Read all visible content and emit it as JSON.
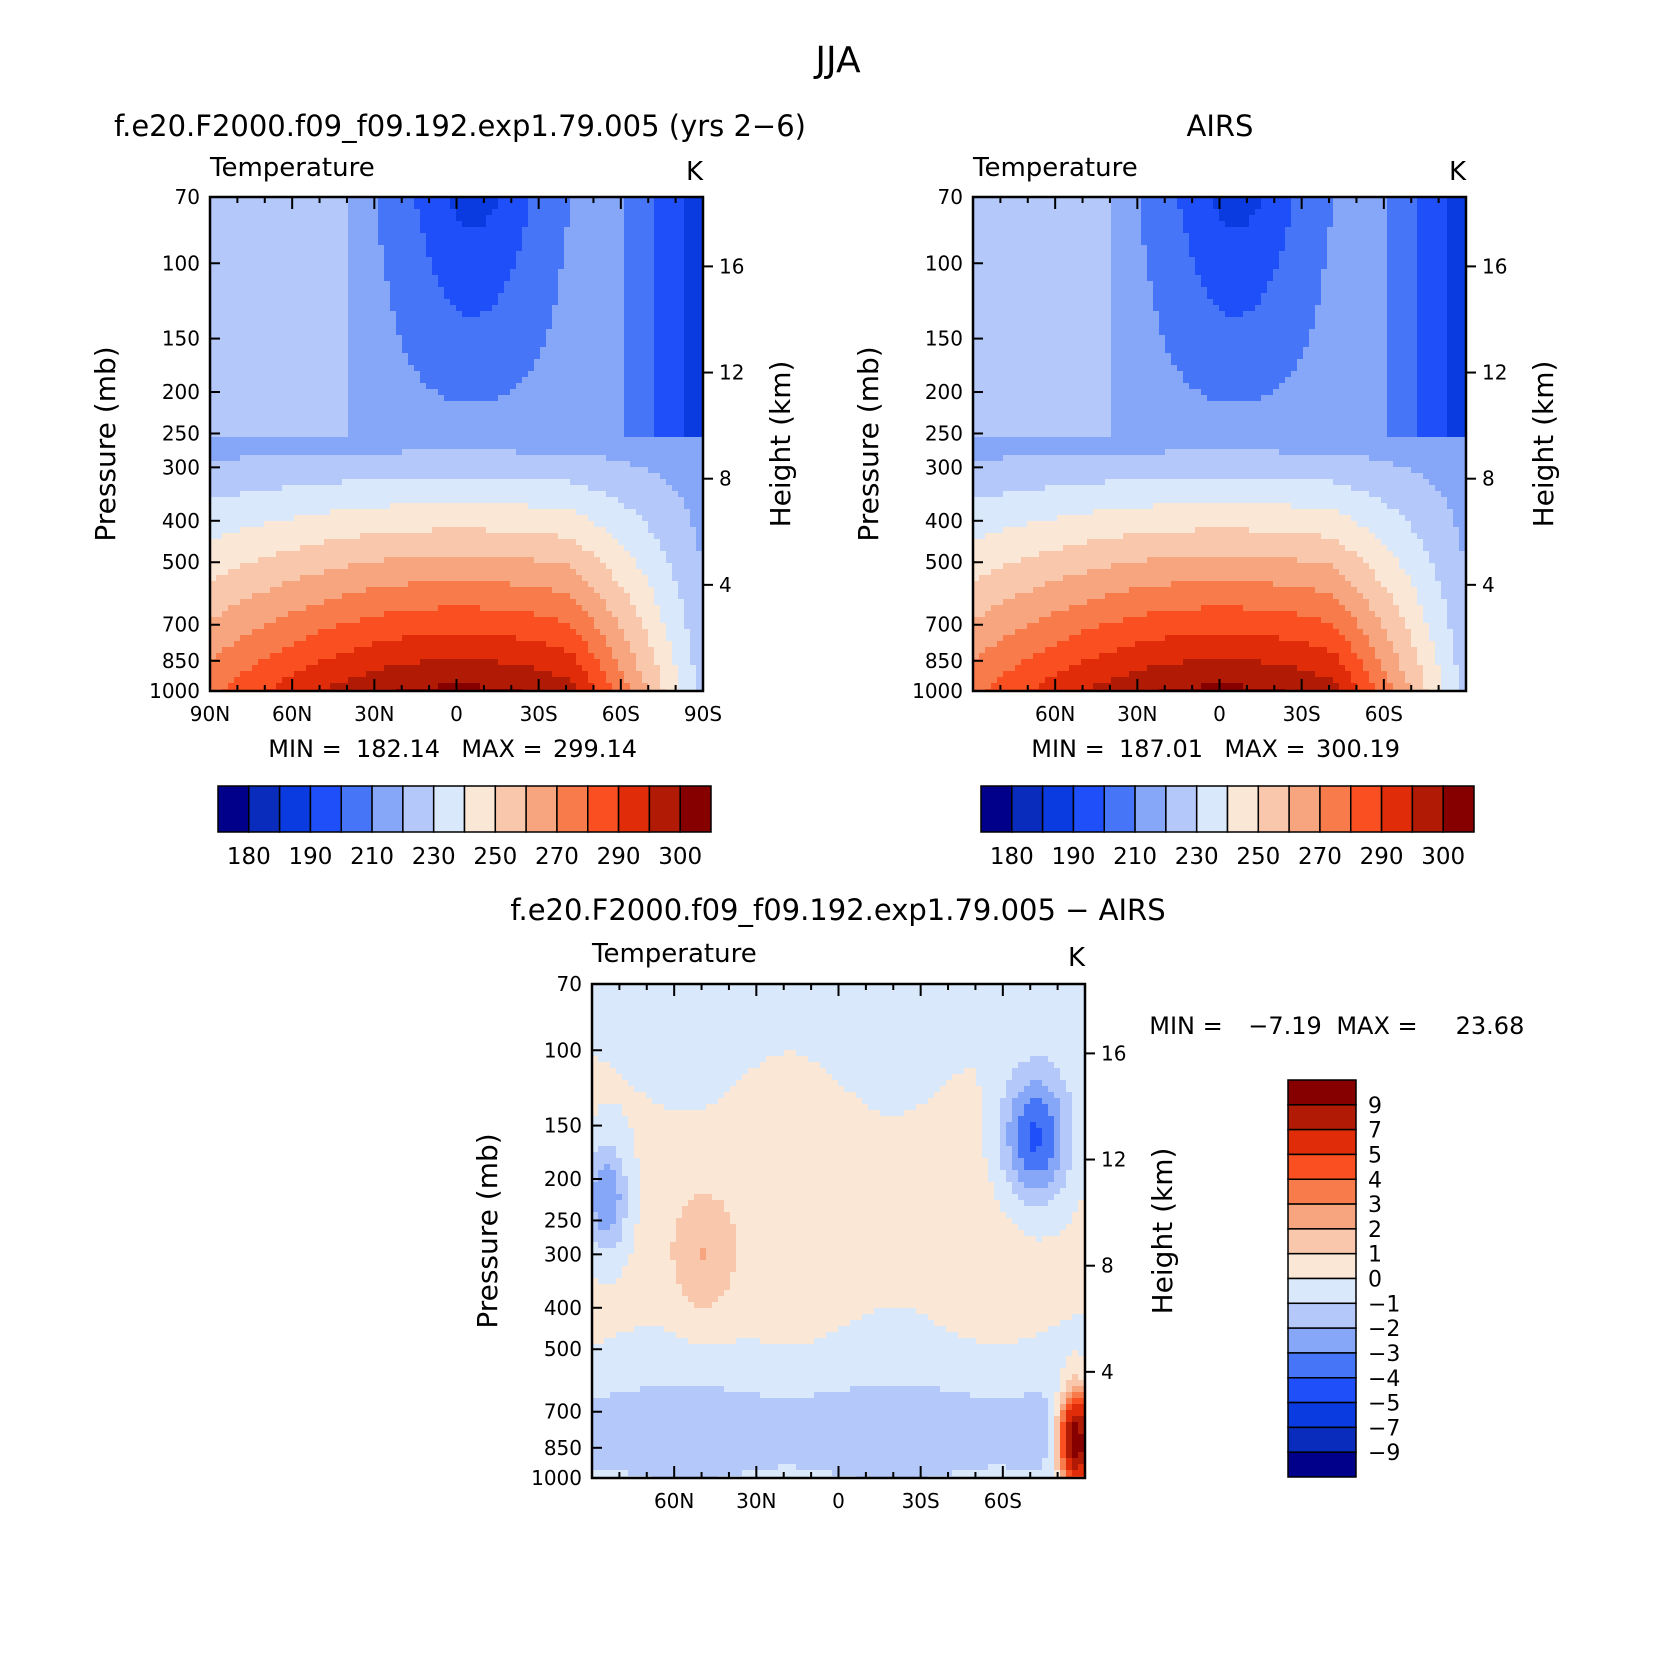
{
  "figure": {
    "title": "JJA"
  },
  "chart_data": [
    {
      "type": "heatmap",
      "title": "f.e20.F2000.f09_f09.192.exp1.79.005 (yrs 2−6)",
      "subtitle": "Temperature",
      "units": "K",
      "xlabel": "",
      "ylabel": "Pressure (mb)",
      "ylabel_right": "Height (km)",
      "x_ticks": [
        "90N",
        "60N",
        "30N",
        "0",
        "30S",
        "60S",
        "90S"
      ],
      "x_tick_values": [
        90,
        60,
        30,
        0,
        -30,
        -60,
        -90
      ],
      "xlim": [
        90,
        -90
      ],
      "y_ticks": [
        70,
        100,
        150,
        200,
        250,
        300,
        400,
        500,
        700,
        850,
        1000
      ],
      "ylim": [
        1000,
        70
      ],
      "y_scale": "log",
      "right_ticks": [
        4,
        8,
        12,
        16
      ],
      "min_label": "MIN =",
      "min": "182.14",
      "max_label": "MAX =",
      "max": "299.14",
      "colorbar": {
        "orientation": "horizontal",
        "colors": [
          "#00008b",
          "#0a2cbc",
          "#0a3be0",
          "#1f4ff8",
          "#4676f7",
          "#86a7f8",
          "#b4c9fa",
          "#d9e8fb",
          "#fbe7d6",
          "#f9c7ab",
          "#f7a57e",
          "#f87b4c",
          "#fa4f21",
          "#e12c09",
          "#b11a05",
          "#870000"
        ],
        "labels": [
          "180",
          "190",
          "210",
          "230",
          "250",
          "270",
          "290",
          "300"
        ]
      }
    },
    {
      "type": "heatmap",
      "title": "AIRS",
      "subtitle": "Temperature",
      "units": "K",
      "xlabel": "",
      "ylabel": "Pressure (mb)",
      "ylabel_right": "Height (km)",
      "x_ticks": [
        "60N",
        "30N",
        "0",
        "30S",
        "60S"
      ],
      "x_tick_values": [
        60,
        30,
        0,
        -30,
        -60
      ],
      "xlim": [
        90,
        -90
      ],
      "y_ticks": [
        70,
        100,
        150,
        200,
        250,
        300,
        400,
        500,
        700,
        850,
        1000
      ],
      "ylim": [
        1000,
        70
      ],
      "y_scale": "log",
      "right_ticks": [
        4,
        8,
        12,
        16
      ],
      "min_label": "MIN =",
      "min": "187.01",
      "max_label": "MAX =",
      "max": "300.19",
      "colorbar": {
        "orientation": "horizontal",
        "colors": [
          "#00008b",
          "#0a2cbc",
          "#0a3be0",
          "#1f4ff8",
          "#4676f7",
          "#86a7f8",
          "#b4c9fa",
          "#d9e8fb",
          "#fbe7d6",
          "#f9c7ab",
          "#f7a57e",
          "#f87b4c",
          "#fa4f21",
          "#e12c09",
          "#b11a05",
          "#870000"
        ],
        "labels": [
          "180",
          "190",
          "210",
          "230",
          "250",
          "270",
          "290",
          "300"
        ]
      }
    },
    {
      "type": "heatmap",
      "title": "f.e20.F2000.f09_f09.192.exp1.79.005 − AIRS",
      "subtitle": "Temperature",
      "units": "K",
      "xlabel": "",
      "ylabel": "Pressure (mb)",
      "ylabel_right": "Height (km)",
      "x_ticks": [
        "60N",
        "30N",
        "0",
        "30S",
        "60S"
      ],
      "x_tick_values": [
        60,
        30,
        0,
        -30,
        -60
      ],
      "xlim": [
        90,
        -90
      ],
      "y_ticks": [
        70,
        100,
        150,
        200,
        250,
        300,
        400,
        500,
        700,
        850,
        1000
      ],
      "ylim": [
        1000,
        70
      ],
      "y_scale": "log",
      "right_ticks": [
        4,
        8,
        12,
        16
      ],
      "min_label": "MIN =",
      "min": "−7.19",
      "max_label": "MAX =",
      "max": "23.68",
      "colorbar": {
        "orientation": "vertical",
        "colors": [
          "#870000",
          "#b11a05",
          "#e12c09",
          "#fa4f21",
          "#f87b4c",
          "#f7a57e",
          "#f9c7ab",
          "#fbe7d6",
          "#d9e8fb",
          "#b4c9fa",
          "#86a7f8",
          "#4676f7",
          "#1f4ff8",
          "#0a3be0",
          "#0a2cbc",
          "#00008b"
        ],
        "labels": [
          "9",
          "7",
          "5",
          "4",
          "3",
          "2",
          "1",
          "0",
          "−1",
          "−2",
          "−3",
          "−4",
          "−5",
          "−7",
          "−9"
        ]
      }
    }
  ]
}
